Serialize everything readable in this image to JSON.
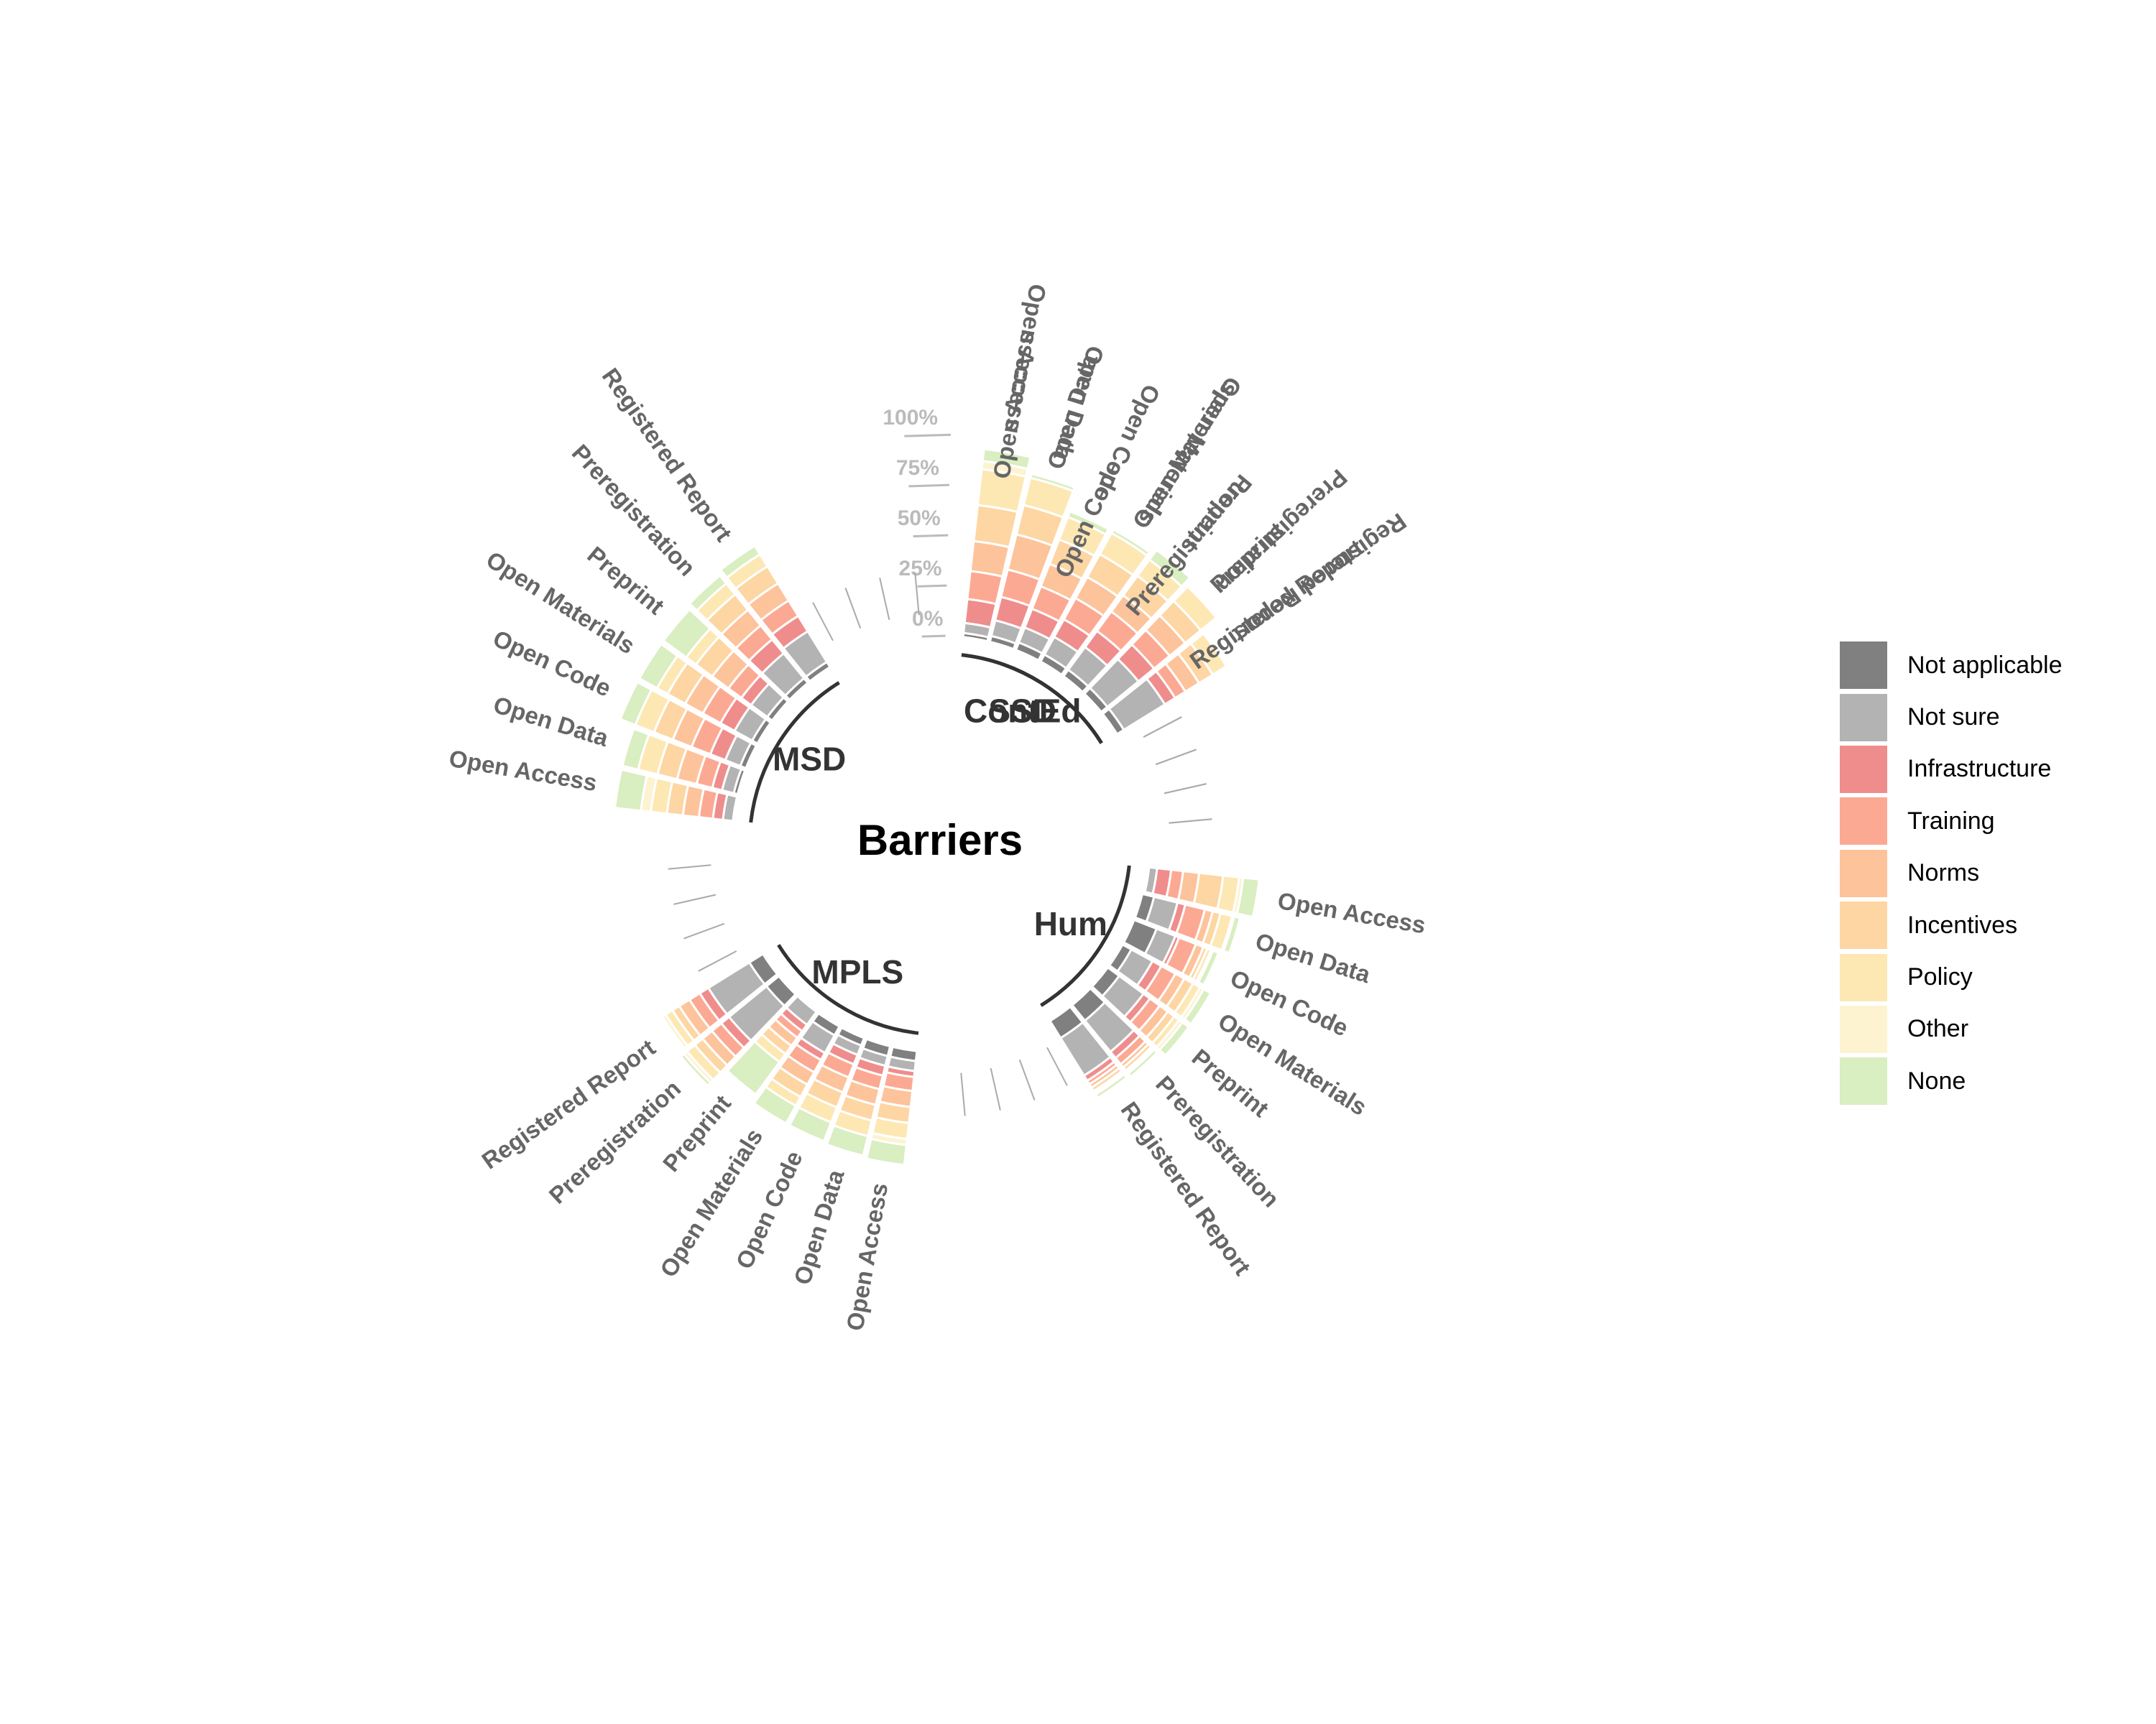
{
  "chart_data": {
    "type": "radial stacked bar",
    "title": "Barriers",
    "radial_ticks": [
      "0%",
      "25%",
      "50%",
      "75%",
      "100%"
    ],
    "stack_order": [
      "Not applicable",
      "Not sure",
      "Infrastructure",
      "Training",
      "Norms",
      "Incentives",
      "Policy",
      "Other",
      "None"
    ],
    "colors": {
      "Not applicable": "#808080",
      "Not sure": "#b3b3b3",
      "Infrastructure": "#ef8d8d",
      "Training": "#fca993",
      "Norms": "#fdc39b",
      "Incentives": "#fdd6a3",
      "Policy": "#fde8b4",
      "Other": "#fef3d1",
      "None": "#d9eec1"
    },
    "legend": [
      {
        "label": "Not applicable",
        "color": "#808080"
      },
      {
        "label": "Not sure",
        "color": "#b3b3b3"
      },
      {
        "label": "Infrastructure",
        "color": "#ef8d8d"
      },
      {
        "label": "Training",
        "color": "#fca993"
      },
      {
        "label": "Norms",
        "color": "#fdc39b"
      },
      {
        "label": "Incentives",
        "color": "#fdd6a3"
      },
      {
        "label": "Policy",
        "color": "#fde8b4"
      },
      {
        "label": "Other",
        "color": "#fef3d1"
      },
      {
        "label": "None",
        "color": "#d9eec1"
      }
    ],
    "groups": [
      {
        "name": "ContEd",
        "bars": [
          {
            "label": "Open Access",
            "values": [
              0,
              10,
              10,
              10,
              10,
              10,
              10,
              0,
              10
            ]
          },
          {
            "label": "Open Data",
            "values": [
              0,
              15,
              10,
              20,
              12,
              12,
              12,
              0,
              0
            ]
          },
          {
            "label": "Open Code",
            "values": [
              0,
              20,
              12,
              0,
              0,
              0,
              0,
              0,
              0
            ]
          },
          {
            "label": "Open Materials",
            "values": [
              0,
              20,
              10,
              12,
              10,
              10,
              10,
              0,
              0
            ]
          },
          {
            "label": "Preregistration",
            "values": [
              0,
              25,
              10,
              0,
              0,
              0,
              0,
              0,
              0
            ]
          },
          {
            "label": "Preprint",
            "values": [
              0,
              20,
              10,
              12,
              10,
              10,
              10,
              0,
              0
            ]
          },
          {
            "label": "Registered Report",
            "values": [
              0,
              30,
              0,
              10,
              0,
              0,
              0,
              0,
              0
            ]
          }
        ]
      },
      {
        "name": "Hum",
        "bars": [
          {
            "label": "Open Access",
            "values": [
              1,
              4,
              7,
              6,
              8,
              12,
              8,
              2,
              8
            ]
          },
          {
            "label": "Open Data",
            "values": [
              6,
              12,
              4,
              10,
              4,
              4,
              6,
              1,
              3
            ]
          },
          {
            "label": "Open Code",
            "values": [
              12,
              10,
              2,
              9,
              4,
              2,
              2,
              1,
              3
            ]
          },
          {
            "label": "Open Materials",
            "values": [
              5,
              12,
              5,
              8,
              5,
              5,
              4,
              2,
              4
            ]
          },
          {
            "label": "Preprint",
            "values": [
              7,
              15,
              4,
              6,
              5,
              4,
              3,
              2,
              4
            ]
          },
          {
            "label": "Preregistration",
            "values": [
              10,
              20,
              4,
              4,
              2,
              2,
              1,
              1,
              2
            ]
          },
          {
            "label": "Registered Report",
            "values": [
              10,
              22,
              3,
              2,
              2,
              2,
              1,
              1,
              2
            ]
          }
        ]
      },
      {
        "name": "MPLS",
        "bars": [
          {
            "label": "Open Access",
            "values": [
              5,
              5,
              3,
              7,
              8,
              8,
              8,
              3,
              10
            ]
          },
          {
            "label": "Open Data",
            "values": [
              5,
              5,
              5,
              7,
              8,
              8,
              8,
              0,
              10
            ]
          },
          {
            "label": "Open Code",
            "values": [
              4,
              5,
              5,
              7,
              8,
              8,
              8,
              0,
              10
            ]
          },
          {
            "label": "Open Materials",
            "values": [
              5,
              10,
              4,
              7,
              7,
              7,
              5,
              0,
              10
            ]
          },
          {
            "label": "Preprint",
            "values": [
              0,
              8,
              4,
              4,
              5,
              5,
              5,
              0,
              20
            ]
          },
          {
            "label": "Preregistration",
            "values": [
              8,
              24,
              5,
              6,
              6,
              5,
              5,
              2,
              2
            ]
          },
          {
            "label": "Registered Report",
            "values": [
              8,
              24,
              5,
              6,
              6,
              4,
              4,
              2,
              1
            ]
          }
        ]
      },
      {
        "name": "MSD",
        "bars": [
          {
            "label": "Open Access",
            "values": [
              0,
              5,
              5,
              7,
              8,
              8,
              8,
              5,
              13
            ]
          },
          {
            "label": "Open Data",
            "values": [
              2,
              6,
              5,
              8,
              10,
              10,
              10,
              0,
              8
            ]
          },
          {
            "label": "Open Code",
            "values": [
              3,
              8,
              8,
              10,
              10,
              10,
              10,
              0,
              8
            ]
          },
          {
            "label": "Open Materials",
            "values": [
              3,
              10,
              8,
              10,
              10,
              10,
              6,
              0,
              10
            ]
          },
          {
            "label": "Preprint",
            "values": [
              3,
              10,
              6,
              8,
              10,
              10,
              6,
              0,
              14
            ]
          },
          {
            "label": "Preregistration",
            "values": [
              3,
              16,
              9,
              9,
              10,
              10,
              7,
              0,
              5
            ]
          },
          {
            "label": "Registered Report",
            "values": [
              3,
              18,
              9,
              9,
              10,
              10,
              7,
              0,
              5
            ]
          }
        ]
      },
      {
        "name": "SSD",
        "bars": [
          {
            "label": "Open Access",
            "values": [
              2,
              5,
              12,
              14,
              15,
              18,
              18,
              4,
              6
            ]
          },
          {
            "label": "Open Data",
            "values": [
              3,
              8,
              12,
              14,
              18,
              15,
              14,
              0,
              2
            ]
          },
          {
            "label": "Open Code",
            "values": [
              4,
              8,
              10,
              12,
              12,
              13,
              12,
              0,
              3
            ]
          },
          {
            "label": "Open Materials",
            "values": [
              4,
              10,
              10,
              12,
              12,
              13,
              12,
              0,
              2
            ]
          },
          {
            "label": "Preprint",
            "values": [
              4,
              14,
              10,
              12,
              10,
              12,
              10,
              0,
              6
            ]
          },
          {
            "label": "Preregistration",
            "values": [
              4,
              20,
              10,
              10,
              10,
              10,
              10,
              0,
              0
            ]
          },
          {
            "label": "Registered Report",
            "values": [
              4,
              24,
              6,
              6,
              8,
              8,
              8,
              0,
              1
            ]
          }
        ]
      }
    ]
  }
}
